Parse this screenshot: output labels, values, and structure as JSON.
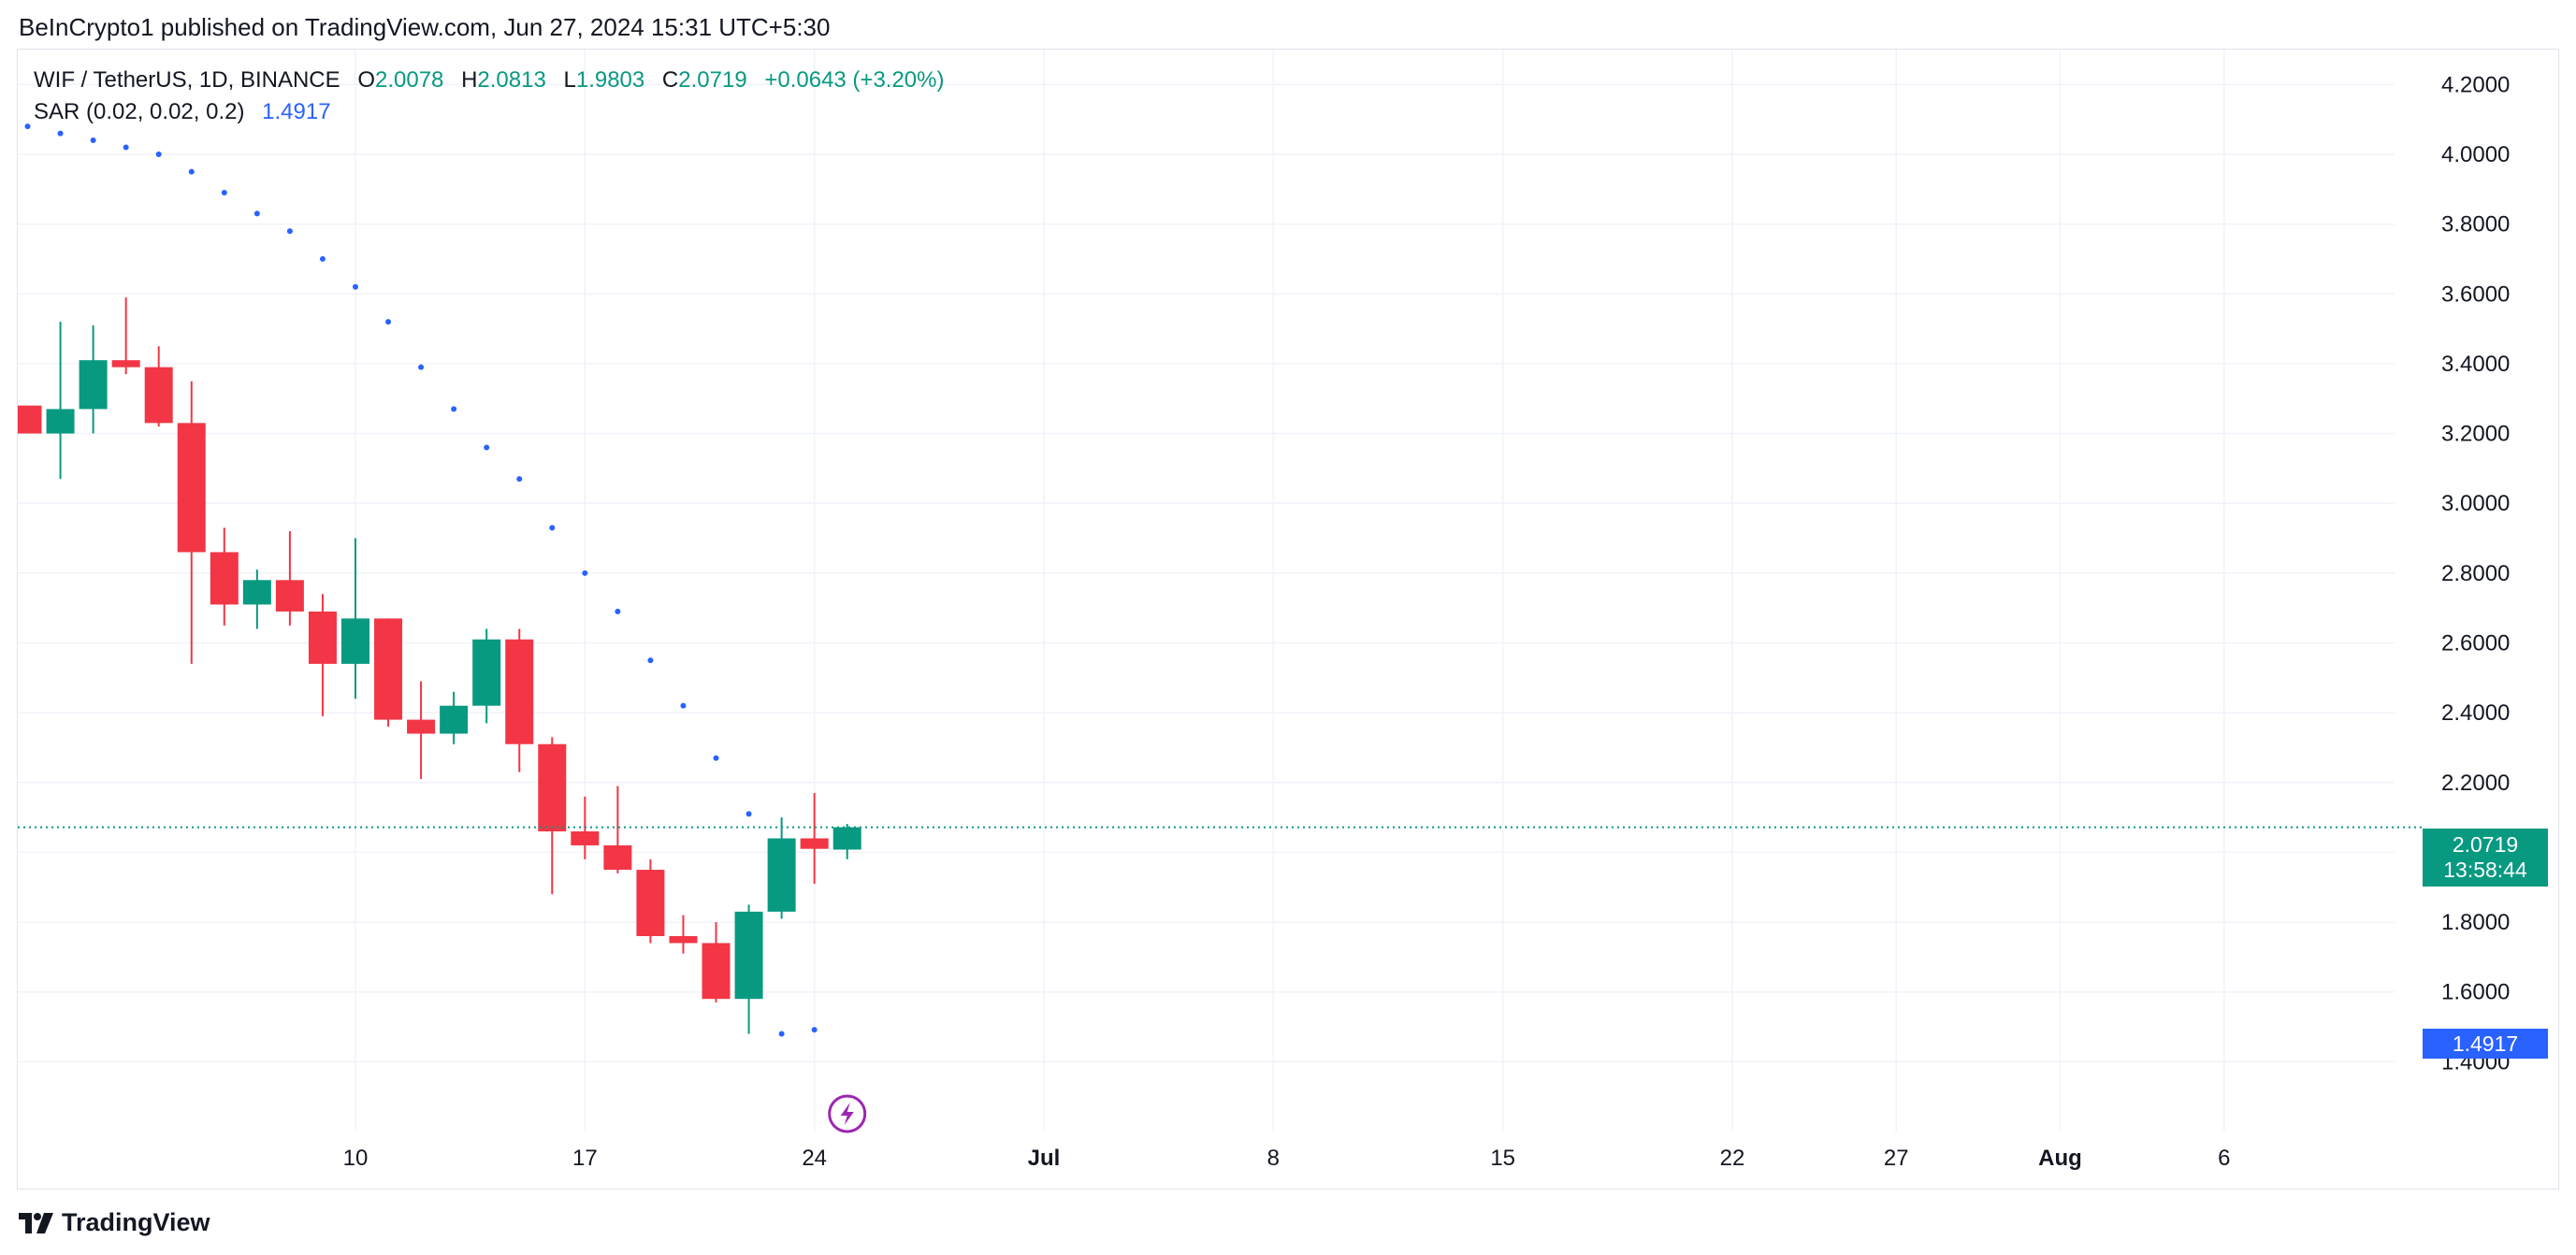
{
  "publisher_line": "BeInCrypto1 published on TradingView.com, Jun 27, 2024 15:31 UTC+5:30",
  "legend": {
    "symbol": "WIF / TetherUS, 1D, BINANCE",
    "open_label": "O",
    "open": "2.0078",
    "high_label": "H",
    "high": "2.0813",
    "low_label": "L",
    "low": "1.9803",
    "close_label": "C",
    "close": "2.0719",
    "change": "+0.0643 (+3.20%)",
    "sar_label": "SAR (0.02, 0.02, 0.2)",
    "sar_value": "1.4917"
  },
  "price_tags": {
    "last_price": "2.0719",
    "countdown": "13:58:44",
    "sar_price": "1.4917"
  },
  "footer": {
    "brand": "TradingView"
  },
  "colors": {
    "up": "#089981",
    "down": "#f23645",
    "sar": "#2962ff",
    "grid": "#f0f3fa",
    "axis_text": "#131722",
    "event_icon": "#9c27b0"
  },
  "chart_data": {
    "type": "candlestick",
    "symbol": "WIF / TetherUS",
    "interval": "1D",
    "exchange": "BINANCE",
    "ylim": [
      1.2,
      4.3
    ],
    "y_ticks": [
      1.4,
      1.6,
      1.8,
      2.0,
      2.2,
      2.4,
      2.6,
      2.8,
      3.0,
      3.2,
      3.4,
      3.6,
      3.8,
      4.0,
      4.2
    ],
    "y_tick_labels": [
      "1.4000",
      "1.6000",
      "1.8000",
      "2.0000",
      "2.2000",
      "2.4000",
      "2.6000",
      "2.8000",
      "3.0000",
      "3.2000",
      "3.4000",
      "3.6000",
      "3.8000",
      "4.0000",
      "4.2000"
    ],
    "x_first_candle_day": "Jun 1",
    "x_domain_days": [
      -0.3,
      72.2
    ],
    "x_ticks": [
      {
        "day": 10,
        "label": "10",
        "bold": false
      },
      {
        "day": 17,
        "label": "17",
        "bold": false
      },
      {
        "day": 24,
        "label": "24",
        "bold": false
      },
      {
        "day": 31,
        "label": "Jul",
        "bold": true
      },
      {
        "day": 38,
        "label": "8",
        "bold": false
      },
      {
        "day": 45,
        "label": "15",
        "bold": false
      },
      {
        "day": 52,
        "label": "22",
        "bold": false
      },
      {
        "day": 57,
        "label": "27",
        "bold": false
      },
      {
        "day": 62,
        "label": "Aug",
        "bold": true
      },
      {
        "day": 67,
        "label": "6",
        "bold": false
      }
    ],
    "candles": [
      {
        "day": 1,
        "o": 3.2,
        "h": 3.52,
        "l": 3.07,
        "c": 3.27
      },
      {
        "day": 2,
        "o": 3.27,
        "h": 3.51,
        "l": 3.2,
        "c": 3.41
      },
      {
        "day": 3,
        "o": 3.41,
        "h": 3.59,
        "l": 3.37,
        "c": 3.39
      },
      {
        "day": 4,
        "o": 3.39,
        "h": 3.45,
        "l": 3.22,
        "c": 3.23
      },
      {
        "day": 5,
        "o": 3.23,
        "h": 3.35,
        "l": 2.54,
        "c": 2.86
      },
      {
        "day": 6,
        "o": 2.86,
        "h": 2.93,
        "l": 2.65,
        "c": 2.71
      },
      {
        "day": 7,
        "o": 2.71,
        "h": 2.81,
        "l": 2.64,
        "c": 2.78
      },
      {
        "day": 8,
        "o": 2.78,
        "h": 2.92,
        "l": 2.65,
        "c": 2.69
      },
      {
        "day": 9,
        "o": 2.69,
        "h": 2.74,
        "l": 2.39,
        "c": 2.54
      },
      {
        "day": 10,
        "o": 2.54,
        "h": 2.9,
        "l": 2.44,
        "c": 2.67
      },
      {
        "day": 11,
        "o": 2.67,
        "h": 2.67,
        "l": 2.36,
        "c": 2.38
      },
      {
        "day": 12,
        "o": 2.38,
        "h": 2.49,
        "l": 2.21,
        "c": 2.34
      },
      {
        "day": 13,
        "o": 2.34,
        "h": 2.46,
        "l": 2.31,
        "c": 2.42
      },
      {
        "day": 14,
        "o": 2.42,
        "h": 2.64,
        "l": 2.37,
        "c": 2.61
      },
      {
        "day": 15,
        "o": 2.61,
        "h": 2.64,
        "l": 2.23,
        "c": 2.31
      },
      {
        "day": 16,
        "o": 2.31,
        "h": 2.33,
        "l": 1.88,
        "c": 2.06
      },
      {
        "day": 17,
        "o": 2.06,
        "h": 2.16,
        "l": 1.98,
        "c": 2.02
      },
      {
        "day": 18,
        "o": 2.02,
        "h": 2.19,
        "l": 1.94,
        "c": 1.95
      },
      {
        "day": 19,
        "o": 1.95,
        "h": 1.98,
        "l": 1.74,
        "c": 1.76
      },
      {
        "day": 20,
        "o": 1.76,
        "h": 1.82,
        "l": 1.71,
        "c": 1.74
      },
      {
        "day": 21,
        "o": 1.74,
        "h": 1.8,
        "l": 1.57,
        "c": 1.58
      },
      {
        "day": 22,
        "o": 1.58,
        "h": 1.85,
        "l": 1.48,
        "c": 1.83
      },
      {
        "day": 23,
        "o": 1.83,
        "h": 2.1,
        "l": 1.81,
        "c": 2.04
      },
      {
        "day": 24,
        "o": 2.04,
        "h": 2.17,
        "l": 1.91,
        "c": 2.01
      },
      {
        "day": 25,
        "o": 2.0078,
        "h": 2.0813,
        "l": 1.9803,
        "c": 2.0719
      }
    ],
    "partial_candle_left": {
      "day": 0,
      "o": 3.28,
      "h": 3.28,
      "l": 3.2,
      "c": 3.2
    },
    "sar": [
      {
        "day": 0,
        "v": 4.08
      },
      {
        "day": 1,
        "v": 4.06
      },
      {
        "day": 2,
        "v": 4.04
      },
      {
        "day": 3,
        "v": 4.02
      },
      {
        "day": 4,
        "v": 4.0
      },
      {
        "day": 5,
        "v": 3.95
      },
      {
        "day": 6,
        "v": 3.89
      },
      {
        "day": 7,
        "v": 3.83
      },
      {
        "day": 8,
        "v": 3.78
      },
      {
        "day": 9,
        "v": 3.7
      },
      {
        "day": 10,
        "v": 3.62
      },
      {
        "day": 11,
        "v": 3.52
      },
      {
        "day": 12,
        "v": 3.39
      },
      {
        "day": 13,
        "v": 3.27
      },
      {
        "day": 14,
        "v": 3.16
      },
      {
        "day": 15,
        "v": 3.07
      },
      {
        "day": 16,
        "v": 2.93
      },
      {
        "day": 17,
        "v": 2.8
      },
      {
        "day": 18,
        "v": 2.69
      },
      {
        "day": 19,
        "v": 2.55
      },
      {
        "day": 20,
        "v": 2.42
      },
      {
        "day": 21,
        "v": 2.27
      },
      {
        "day": 22,
        "v": 2.11
      },
      {
        "day": 23,
        "v": 1.48
      },
      {
        "day": 24,
        "v": 1.4917
      }
    ],
    "last_price_line": 2.0719,
    "event_marker_day": 25
  }
}
